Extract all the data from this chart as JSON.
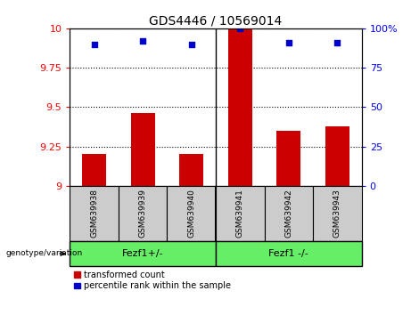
{
  "title": "GDS4446 / 10569014",
  "categories": [
    "GSM639938",
    "GSM639939",
    "GSM639940",
    "GSM639941",
    "GSM639942",
    "GSM639943"
  ],
  "bar_values": [
    9.2,
    9.46,
    9.2,
    10.0,
    9.35,
    9.38
  ],
  "percentile_values": [
    90,
    92,
    90,
    100,
    91,
    91
  ],
  "ylim_left": [
    9,
    10
  ],
  "ylim_right": [
    0,
    100
  ],
  "yticks_left": [
    9,
    9.25,
    9.5,
    9.75,
    10
  ],
  "yticks_right": [
    0,
    25,
    50,
    75,
    100
  ],
  "bar_color": "#cc0000",
  "dot_color": "#0000cc",
  "group1_label": "Fezf1+/-",
  "group2_label": "Fezf1 -/-",
  "group_bg_color": "#66ee66",
  "sample_bg_color": "#cccccc",
  "legend_bar_label": "transformed count",
  "legend_dot_label": "percentile rank within the sample",
  "genotype_label": "genotype/variation",
  "fig_width": 4.61,
  "fig_height": 3.54,
  "dpi": 100
}
